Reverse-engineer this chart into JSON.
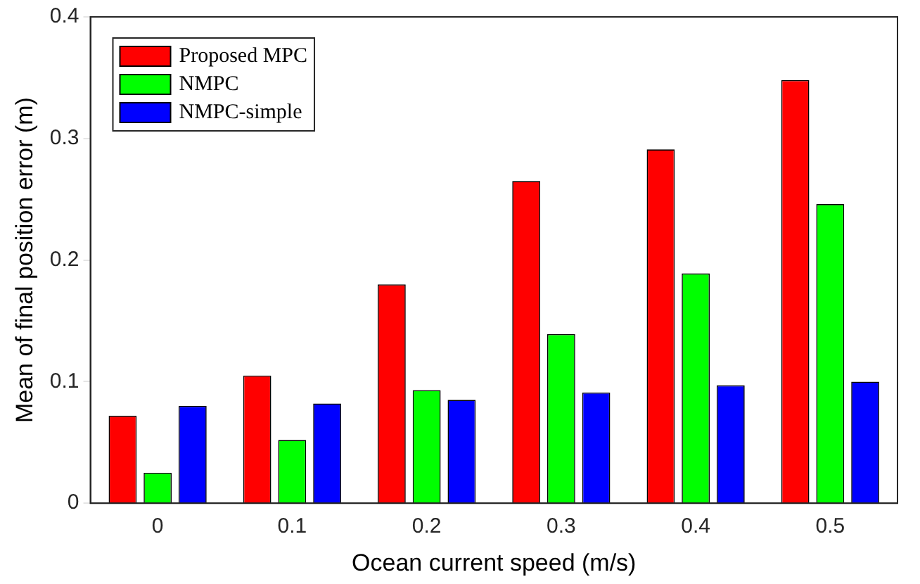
{
  "chart_data": {
    "type": "bar",
    "xlabel": "Ocean current speed (m/s)",
    "ylabel": "Mean of final position error (m)",
    "categories": [
      "0",
      "0.1",
      "0.2",
      "0.3",
      "0.4",
      "0.5"
    ],
    "series": [
      {
        "name": "Proposed MPC",
        "color": "#ff0000",
        "values": [
          0.072,
          0.105,
          0.18,
          0.265,
          0.291,
          0.348
        ]
      },
      {
        "name": "NMPC",
        "color": "#00ff00",
        "values": [
          0.025,
          0.052,
          0.093,
          0.139,
          0.189,
          0.246
        ]
      },
      {
        "name": "NMPC-simple",
        "color": "#0000ff",
        "values": [
          0.08,
          0.082,
          0.085,
          0.091,
          0.097,
          0.1
        ]
      }
    ],
    "ylim": [
      0,
      0.4
    ],
    "yticks": [
      0,
      0.1,
      0.2,
      0.3,
      0.4
    ],
    "grid": false,
    "legend": "top left"
  }
}
